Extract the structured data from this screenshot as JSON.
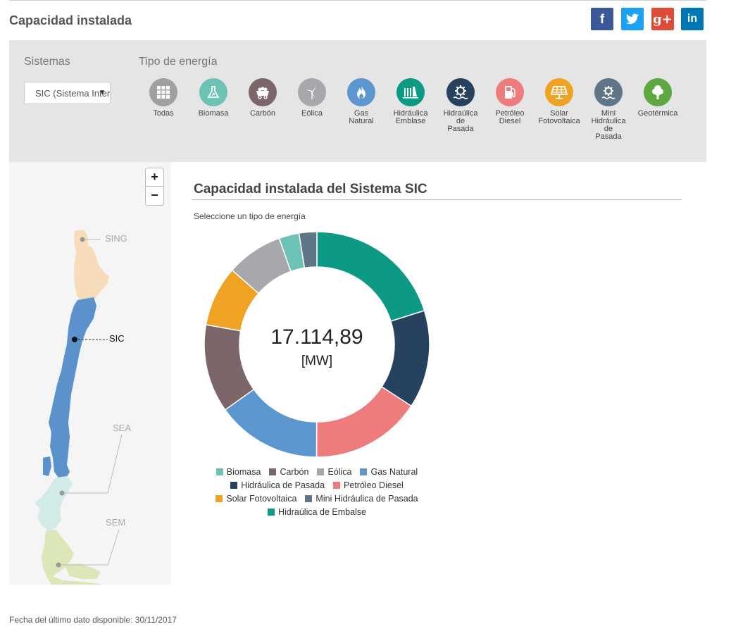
{
  "page": {
    "title": "Capacidad instalada"
  },
  "social": [
    {
      "name": "facebook",
      "glyph": "f",
      "color": "#3b5998"
    },
    {
      "name": "twitter",
      "glyph": "t",
      "color": "#1da1f2"
    },
    {
      "name": "google-plus",
      "glyph": "g+",
      "color": "#dd4b39"
    },
    {
      "name": "linkedin",
      "glyph": "in",
      "color": "#0077b5"
    }
  ],
  "filters": {
    "systems_heading": "Sistemas",
    "system_selected": "SIC (Sistema Interconectado Central)",
    "energy_heading": "Tipo de energía",
    "energy_types": [
      {
        "id": "todas",
        "label": "Todas",
        "color": "#a0a0a0",
        "icon": "grid-icon"
      },
      {
        "id": "biomasa",
        "label": "Biomasa",
        "color": "#6cc3b5",
        "icon": "flask-icon"
      },
      {
        "id": "carbon",
        "label": "Carbón",
        "color": "#7d666a",
        "icon": "coal-cart-icon"
      },
      {
        "id": "eolica",
        "label": "Eólica",
        "color": "#a6a8ab",
        "icon": "wind-turbine-icon"
      },
      {
        "id": "gas-natural",
        "label": "Gas\nNatural",
        "color": "#5b97ce",
        "icon": "flame-icon"
      },
      {
        "id": "hidraulica-embalse",
        "label": "Hidráulica\nEmblase",
        "color": "#0c9a84",
        "icon": "dam-icon"
      },
      {
        "id": "hidraulica-pasada",
        "label": "Hidraúlica\nde\nPasada",
        "color": "#26425e",
        "icon": "water-wheel-icon"
      },
      {
        "id": "petroleo-diesel",
        "label": "Petróleo\nDiesel",
        "color": "#ee7c7c",
        "icon": "fuel-pump-icon"
      },
      {
        "id": "solar",
        "label": "Solar\nFotovoltaica",
        "color": "#f0a322",
        "icon": "solar-panel-icon"
      },
      {
        "id": "mini-hidraulica",
        "label": "Mini\nHidráulica\nde\nPasada",
        "color": "#607587",
        "icon": "mini-water-wheel-icon"
      },
      {
        "id": "geotermica",
        "label": "Geotérmica",
        "color": "#5ea843",
        "icon": "geyser-icon"
      }
    ]
  },
  "map": {
    "zoom_in": "+",
    "zoom_out": "−",
    "labels": {
      "sing": "SING",
      "sic": "SIC",
      "sea": "SEA",
      "sem": "SEM"
    },
    "colors": {
      "sing": "#f6dcb8",
      "sic": "#5b92cc",
      "sea": "#d3ebe6",
      "sem": "#dbe7b8",
      "marker": "#999999",
      "active_marker": "#111111"
    }
  },
  "chart": {
    "title": "Capacidad instalada del Sistema SIC",
    "subtitle": "Seleccione un tipo de energía",
    "total_value": "17.114,89",
    "total_unit": "[MW]"
  },
  "chart_data": {
    "type": "pie",
    "donut": true,
    "unit": "MW",
    "total": 17114.89,
    "series": [
      {
        "name": "Hidraúlica de Embalse",
        "share": 0.2015,
        "color": "#0c9a84"
      },
      {
        "name": "Hidráulica de Pasada",
        "share": 0.1405,
        "color": "#26425e"
      },
      {
        "name": "Petróleo Diesel",
        "share": 0.1585,
        "color": "#ee7c7c"
      },
      {
        "name": "Gas Natural",
        "share": 0.151,
        "color": "#5b97ce"
      },
      {
        "name": "Carbón",
        "share": 0.1265,
        "color": "#7d666a"
      },
      {
        "name": "Solar Fotovoltaica",
        "share": 0.0865,
        "color": "#f0a322"
      },
      {
        "name": "Eólica",
        "share": 0.081,
        "color": "#a6a8ab"
      },
      {
        "name": "Biomasa",
        "share": 0.029,
        "color": "#6cc3b5"
      },
      {
        "name": "Mini Hidráulica de Pasada",
        "share": 0.0255,
        "color": "#607587"
      }
    ],
    "legend_order": [
      [
        "Biomasa",
        "Carbón",
        "Eólica",
        "Gas Natural"
      ],
      [
        "Hidráulica de Pasada",
        "Petróleo Diesel"
      ],
      [
        "Solar Fotovoltaica",
        "Mini Hidráulica de Pasada"
      ],
      [
        "Hidraúlica de Embalse"
      ]
    ],
    "legend_placement": "bottom"
  },
  "footer": {
    "date_text": "Fecha del último dato disponible: 30/11/2017"
  }
}
